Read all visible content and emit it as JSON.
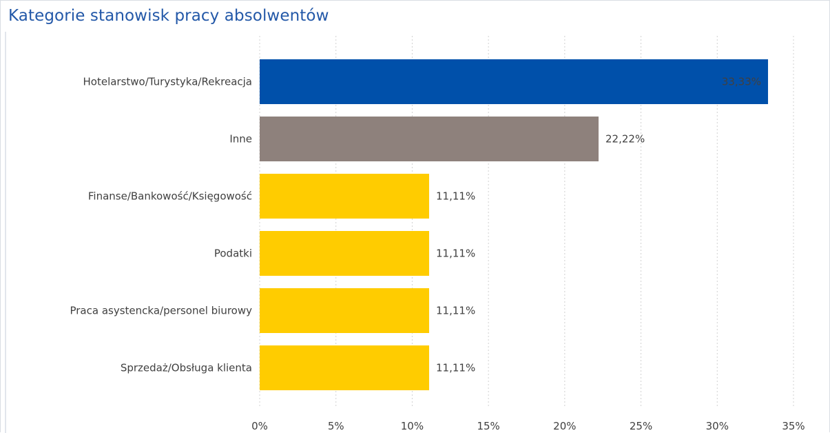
{
  "chart_data": {
    "type": "bar",
    "orientation": "horizontal",
    "title": "Kategorie stanowisk pracy absolwentów",
    "categories": [
      "Hotelarstwo/Turystyka/Rekreacja",
      "Inne",
      "Finanse/Bankowość/Księgowość",
      "Podatki",
      "Praca asystencka/personel biurowy",
      "Sprzedaż/Obsługa klienta"
    ],
    "values": [
      33.33,
      22.22,
      11.11,
      11.11,
      11.11,
      11.11
    ],
    "data_labels": [
      "33,33%",
      "22,22%",
      "11,11%",
      "11,11%",
      "11,11%",
      "11,11%"
    ],
    "bar_colors": [
      "#0050aa",
      "#8e817c",
      "#ffcc00",
      "#ffcc00",
      "#ffcc00",
      "#ffcc00"
    ],
    "xlim": [
      0,
      35
    ],
    "xticks": [
      0,
      5,
      10,
      15,
      20,
      25,
      30,
      35
    ],
    "xtick_labels": [
      "0%",
      "5%",
      "10%",
      "15%",
      "20%",
      "25%",
      "30%",
      "35%"
    ],
    "grid": "vertical-dotted",
    "legend": "none"
  }
}
